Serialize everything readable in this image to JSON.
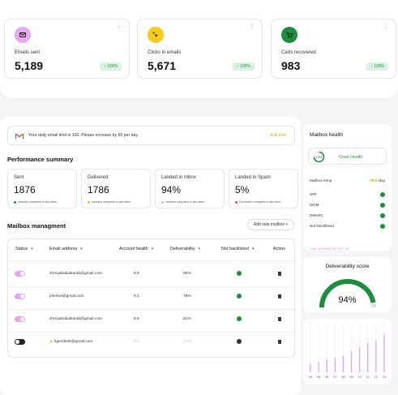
{
  "stats": [
    {
      "label": "Emails sent",
      "value": "5,189",
      "badge": "100%",
      "icon": "mail-icon",
      "icon_bg": "#e7a8f0"
    },
    {
      "label": "Clicks in emails",
      "value": "5,671",
      "badge": "100%",
      "icon": "cursor-click-icon",
      "icon_bg": "#f7cc1b"
    },
    {
      "label": "Carts recovered",
      "value": "983",
      "badge": "100%",
      "icon": "cart-icon",
      "icon_bg": "#1e8e3e"
    }
  ],
  "limit_notice": {
    "text": "Your daily email limit is 100. Please increase by 50 per day.",
    "link": "Edit limit"
  },
  "performance": {
    "title": "Performance summary",
    "cards": [
      {
        "label": "Sent",
        "value": "1876",
        "note": "Increase compared to last week",
        "dot": "#1e8e3e"
      },
      {
        "label": "Delivered",
        "value": "1786",
        "note": "Increase compared to last week",
        "dot": "#f2c21b"
      },
      {
        "label": "Landed in Inbox",
        "value": "94%",
        "note": "Increase compared to last week",
        "dot": "#e7a8f0"
      },
      {
        "label": "Landed in Spam",
        "value": "5%",
        "note": "Decreased compared to last week",
        "dot": "#e04b4b"
      }
    ]
  },
  "mailbox_management": {
    "title": "Mailbox managment",
    "add_button": "Add new mailbox",
    "columns": [
      "Status",
      "Email address",
      "Account health",
      "Deliverability",
      "Not backlisted",
      "Action"
    ],
    "rows": [
      {
        "status": "on",
        "email": "shreyababulkarab@gmail.com",
        "health": "8.9",
        "deliverability": "92%",
        "warning": false
      },
      {
        "status": "on",
        "email": "johnfoe@gmail.com",
        "health": "8.2",
        "deliverability": "78%",
        "warning": false
      },
      {
        "status": "on",
        "email": "shreyababulkarab@gmail.com",
        "health": "8.6",
        "deliverability": "81%",
        "warning": false
      },
      {
        "status": "off",
        "email": "tigersleek@gmail.com",
        "health": "0.0",
        "deliverability": "0.0%",
        "warning": true
      }
    ]
  },
  "mailbox_health": {
    "title": "Mailbox health",
    "score_pct": "74%",
    "score_value": 74,
    "status": "Good Health",
    "temp_label": "Mailbox temp.",
    "temp_value": "29.8",
    "temp_unit": "/day",
    "checks": [
      "SPF",
      "DKIM",
      "DMARC",
      "Not blacklisted"
    ],
    "link": "Last updated on Jun 15"
  },
  "deliverability_score": {
    "title": "Deliverability score",
    "value": "94%",
    "score": 94
  },
  "chart_data": {
    "type": "bar",
    "categories": [
      "04",
      "05",
      "06",
      "07",
      "08",
      "09",
      "10",
      "11",
      "12",
      "13"
    ],
    "series": [
      {
        "values": [
          4,
          5,
          6,
          7,
          8,
          10,
          12,
          14,
          15,
          18
        ]
      }
    ],
    "ylim": [
      0,
      24
    ],
    "grid": true,
    "bar_color": "#e3a6f0"
  },
  "colors": {
    "accent_green": "#1e8e3e",
    "accent_pink": "#e3a6f0",
    "accent_yellow": "#f2c21b"
  }
}
